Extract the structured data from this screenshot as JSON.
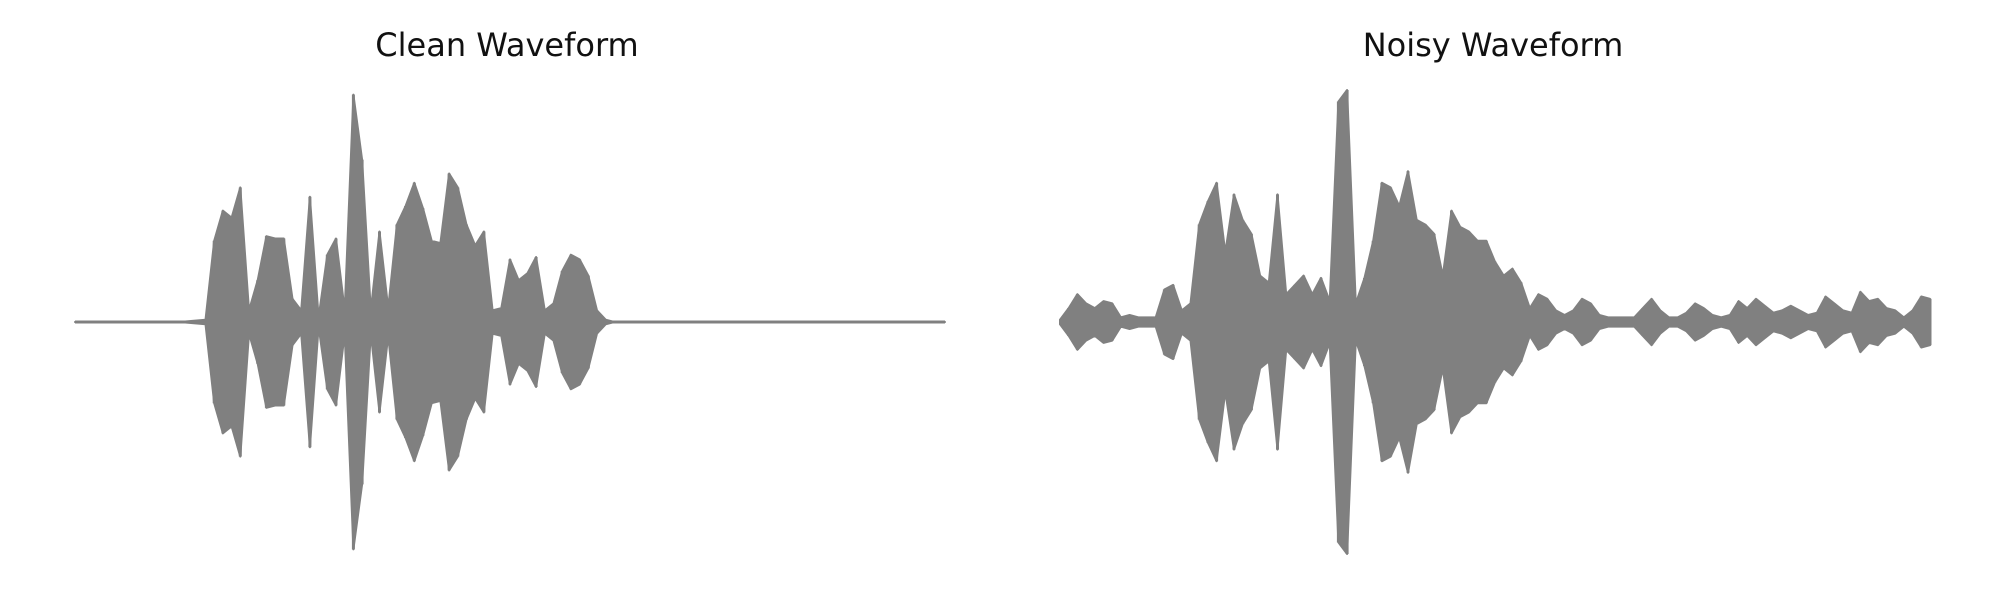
{
  "chart_data": [
    {
      "type": "area",
      "title": "Clean Waveform",
      "xlabel": "",
      "ylabel": "",
      "axes_visible": false,
      "grid": false,
      "color": "#808080",
      "ylim": [
        -1.0,
        1.0
      ],
      "x": [
        0,
        0.03,
        0.06,
        0.09,
        0.12,
        0.15,
        0.16,
        0.17,
        0.18,
        0.19,
        0.2,
        0.21,
        0.22,
        0.23,
        0.24,
        0.25,
        0.26,
        0.27,
        0.28,
        0.29,
        0.3,
        0.31,
        0.32,
        0.33,
        0.34,
        0.35,
        0.36,
        0.37,
        0.38,
        0.39,
        0.4,
        0.41,
        0.42,
        0.43,
        0.44,
        0.45,
        0.46,
        0.47,
        0.48,
        0.49,
        0.5,
        0.51,
        0.52,
        0.53,
        0.54,
        0.55,
        0.56,
        0.57,
        0.58,
        0.59,
        0.6,
        0.61,
        0.62,
        0.63,
        0.64,
        0.66,
        0.7,
        0.75,
        0.8,
        0.85,
        0.9,
        0.95,
        1.0
      ],
      "values": [
        0,
        0,
        0,
        0,
        0,
        0.01,
        0.35,
        0.48,
        0.45,
        0.58,
        0.05,
        0.18,
        0.37,
        0.36,
        0.36,
        0.1,
        0.05,
        0.54,
        0.02,
        0.29,
        0.36,
        0.05,
        0.98,
        0.7,
        0.05,
        0.39,
        0.06,
        0.42,
        0.5,
        0.6,
        0.49,
        0.35,
        0.34,
        0.64,
        0.58,
        0.42,
        0.33,
        0.39,
        0.05,
        0.06,
        0.27,
        0.18,
        0.21,
        0.28,
        0.05,
        0.08,
        0.22,
        0.29,
        0.27,
        0.2,
        0.05,
        0.01,
        0,
        0,
        0,
        0,
        0,
        0,
        0,
        0,
        0,
        0,
        0
      ]
    },
    {
      "type": "area",
      "title": "Noisy Waveform",
      "xlabel": "",
      "ylabel": "",
      "axes_visible": false,
      "grid": false,
      "color": "#808080",
      "ylim": [
        -1.0,
        1.0
      ],
      "x": [
        0,
        0.01,
        0.02,
        0.03,
        0.04,
        0.05,
        0.06,
        0.07,
        0.08,
        0.09,
        0.1,
        0.11,
        0.12,
        0.13,
        0.14,
        0.15,
        0.16,
        0.17,
        0.18,
        0.19,
        0.2,
        0.21,
        0.22,
        0.23,
        0.24,
        0.25,
        0.26,
        0.27,
        0.28,
        0.29,
        0.3,
        0.31,
        0.32,
        0.33,
        0.34,
        0.35,
        0.36,
        0.37,
        0.38,
        0.39,
        0.4,
        0.41,
        0.42,
        0.43,
        0.44,
        0.45,
        0.46,
        0.47,
        0.48,
        0.49,
        0.5,
        0.51,
        0.52,
        0.53,
        0.54,
        0.55,
        0.56,
        0.57,
        0.58,
        0.59,
        0.6,
        0.61,
        0.62,
        0.63,
        0.64,
        0.65,
        0.66,
        0.67,
        0.68,
        0.69,
        0.7,
        0.71,
        0.72,
        0.73,
        0.74,
        0.75,
        0.76,
        0.77,
        0.78,
        0.79,
        0.8,
        0.81,
        0.82,
        0.83,
        0.84,
        0.85,
        0.86,
        0.87,
        0.88,
        0.89,
        0.9,
        0.91,
        0.92,
        0.93,
        0.94,
        0.95,
        0.96,
        0.97,
        0.98,
        0.99,
        1.0
      ],
      "values": [
        0.01,
        0.06,
        0.12,
        0.08,
        0.06,
        0.09,
        0.08,
        0.02,
        0.03,
        0.02,
        0.02,
        0.02,
        0.14,
        0.16,
        0.05,
        0.08,
        0.42,
        0.52,
        0.6,
        0.3,
        0.55,
        0.44,
        0.38,
        0.2,
        0.17,
        0.55,
        0.12,
        0.16,
        0.2,
        0.12,
        0.19,
        0.09,
        0.95,
        1.0,
        0.08,
        0.19,
        0.35,
        0.6,
        0.58,
        0.5,
        0.65,
        0.44,
        0.42,
        0.38,
        0.2,
        0.48,
        0.41,
        0.39,
        0.35,
        0.35,
        0.26,
        0.2,
        0.23,
        0.17,
        0.06,
        0.12,
        0.1,
        0.05,
        0.03,
        0.05,
        0.1,
        0.08,
        0.03,
        0.02,
        0.02,
        0.02,
        0.02,
        0.06,
        0.1,
        0.05,
        0.02,
        0.02,
        0.04,
        0.08,
        0.06,
        0.03,
        0.02,
        0.03,
        0.09,
        0.06,
        0.1,
        0.07,
        0.04,
        0.05,
        0.07,
        0.05,
        0.03,
        0.04,
        0.11,
        0.08,
        0.05,
        0.04,
        0.13,
        0.09,
        0.1,
        0.06,
        0.05,
        0.02,
        0.05,
        0.11,
        0.1
      ]
    }
  ]
}
